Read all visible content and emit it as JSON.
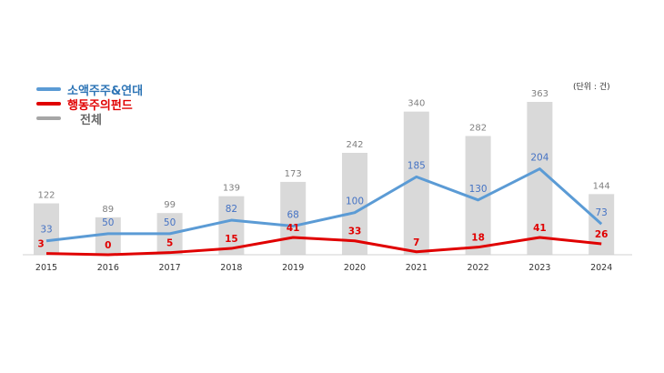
{
  "chart_data": {
    "type": "bar",
    "categories": [
      "2015",
      "2016",
      "2017",
      "2018",
      "2019",
      "2020",
      "2021",
      "2022",
      "2023",
      "2024"
    ],
    "series": [
      {
        "name": "전체",
        "kind": "bar",
        "color": "#d9d9d9",
        "label_color": "#7f7f7f",
        "values": [
          122,
          89,
          99,
          139,
          173,
          242,
          340,
          282,
          363,
          144
        ]
      },
      {
        "name": "소액주주&연대",
        "kind": "line",
        "color": "#5b9bd5",
        "label_color": "#4472c4",
        "values": [
          33,
          50,
          50,
          82,
          68,
          100,
          185,
          130,
          204,
          73
        ]
      },
      {
        "name": "행동주의펀드",
        "kind": "line",
        "color": "#e00000",
        "label_color": "#e00000",
        "values": [
          3,
          0,
          5,
          15,
          41,
          33,
          7,
          18,
          41,
          26
        ]
      }
    ],
    "unit_label": "(단위 : 건)",
    "ylim": [
      0,
      380
    ],
    "legend_position": "top-left",
    "grid": false
  }
}
